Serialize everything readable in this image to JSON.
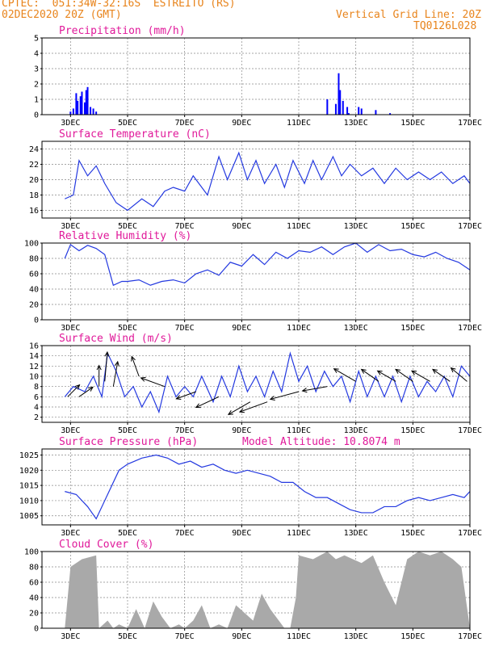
{
  "header": {
    "station": "CPTEC:  051:34W-32:16S  ESTREITO (RS)",
    "run": "02DEC2020 20Z (GMT)",
    "grid_note": "Vertical Grid Line: 20Z",
    "model_code": "TQ0126L028"
  },
  "colors": {
    "header": "#e8841c",
    "title": "#e0199a",
    "line": "#2439e0",
    "bars": "#0000ff",
    "cloud": "#a9a9a9"
  },
  "x_labels": [
    "3DEC",
    "5DEC",
    "7DEC",
    "9DEC",
    "11DEC",
    "13DEC",
    "15DEC",
    "17DEC"
  ],
  "chart_data": [
    {
      "id": "precip",
      "type": "bar",
      "title": "Precipitation (mm/h)",
      "ylim": [
        0,
        5
      ],
      "yticks": [
        "0",
        "1",
        "2",
        "3",
        "4",
        "5"
      ],
      "grid": true,
      "x_range_days": [
        2.8,
        17.0
      ],
      "series": [
        {
          "x": [
            3.0,
            3.1,
            3.2,
            3.25,
            3.35,
            3.4,
            3.5,
            3.55,
            3.6,
            3.7,
            3.8,
            3.9,
            12.0,
            12.3,
            12.4,
            12.45,
            12.55,
            12.7,
            12.75,
            13.1,
            13.2,
            13.7,
            14.2
          ],
          "values": [
            0.2,
            0.4,
            1.4,
            0.9,
            1.2,
            1.5,
            0.8,
            1.6,
            1.8,
            0.5,
            0.4,
            0.2,
            1.0,
            0.7,
            2.7,
            1.6,
            0.9,
            0.5,
            0.1,
            0.5,
            0.4,
            0.3,
            0.1
          ]
        }
      ]
    },
    {
      "id": "temp",
      "type": "line",
      "title": "Surface Temperature (nC)",
      "ylim": [
        15,
        25
      ],
      "yticks": [
        "16",
        "18",
        "20",
        "22",
        "24"
      ],
      "grid": true,
      "series": [
        {
          "x": [
            2.8,
            3.1,
            3.3,
            3.6,
            3.9,
            4.2,
            4.6,
            5.0,
            5.5,
            5.9,
            6.3,
            6.6,
            7.0,
            7.3,
            7.8,
            8.2,
            8.5,
            8.9,
            9.2,
            9.5,
            9.8,
            10.2,
            10.5,
            10.8,
            11.2,
            11.5,
            11.8,
            12.2,
            12.5,
            12.8,
            13.2,
            13.6,
            14.0,
            14.4,
            14.8,
            15.2,
            15.6,
            16.0,
            16.4,
            16.8,
            17.0
          ],
          "values": [
            17.5,
            18.0,
            22.5,
            20.5,
            21.8,
            19.5,
            17.0,
            16.0,
            17.5,
            16.5,
            18.5,
            19.0,
            18.5,
            20.5,
            18.0,
            23.0,
            20.0,
            23.5,
            20.0,
            22.5,
            19.5,
            22.0,
            19.0,
            22.5,
            19.5,
            22.5,
            20.0,
            23.0,
            20.5,
            22.0,
            20.5,
            21.5,
            19.5,
            21.5,
            20.0,
            21.0,
            20.0,
            21.0,
            19.5,
            20.5,
            19.5
          ]
        }
      ]
    },
    {
      "id": "rh",
      "type": "line",
      "title": "Relative Humidity (%)",
      "ylim": [
        0,
        100
      ],
      "yticks": [
        "0",
        "20",
        "40",
        "60",
        "80",
        "100"
      ],
      "grid": true,
      "series": [
        {
          "x": [
            2.8,
            3.0,
            3.3,
            3.6,
            3.9,
            4.2,
            4.5,
            4.8,
            5.0,
            5.4,
            5.8,
            6.2,
            6.6,
            7.0,
            7.4,
            7.8,
            8.2,
            8.6,
            9.0,
            9.4,
            9.8,
            10.2,
            10.6,
            11.0,
            11.4,
            11.8,
            12.2,
            12.6,
            13.0,
            13.4,
            13.8,
            14.2,
            14.6,
            15.0,
            15.4,
            15.8,
            16.2,
            16.6,
            17.0
          ],
          "values": [
            80,
            98,
            90,
            97,
            93,
            85,
            45,
            50,
            50,
            52,
            45,
            50,
            52,
            48,
            60,
            65,
            58,
            75,
            70,
            85,
            72,
            88,
            80,
            90,
            88,
            95,
            85,
            95,
            100,
            88,
            98,
            90,
            92,
            85,
            82,
            88,
            80,
            75,
            65
          ]
        }
      ]
    },
    {
      "id": "wind",
      "type": "line",
      "title": "Surface Wind (m/s)",
      "ylim": [
        1,
        16
      ],
      "yticks": [
        "2",
        "4",
        "6",
        "8",
        "10",
        "12",
        "14",
        "16"
      ],
      "grid": true,
      "series": [
        {
          "x": [
            2.8,
            3.1,
            3.5,
            3.8,
            4.1,
            4.3,
            4.6,
            4.9,
            5.2,
            5.5,
            5.8,
            6.1,
            6.4,
            6.7,
            7.0,
            7.3,
            7.6,
            8.0,
            8.3,
            8.6,
            8.9,
            9.2,
            9.5,
            9.8,
            10.1,
            10.4,
            10.7,
            11.0,
            11.3,
            11.6,
            11.9,
            12.2,
            12.5,
            12.8,
            13.1,
            13.4,
            13.7,
            14.0,
            14.3,
            14.6,
            14.9,
            15.2,
            15.5,
            15.8,
            16.1,
            16.4,
            16.7,
            17.0
          ],
          "values": [
            6,
            8,
            7,
            10,
            6,
            14.5,
            11,
            6,
            8,
            4,
            7,
            3,
            10,
            6,
            8,
            6,
            10,
            5,
            10,
            6,
            12,
            7,
            10,
            6,
            11,
            7,
            14.5,
            9,
            12,
            7,
            11,
            8,
            10,
            5,
            11,
            6,
            10,
            6,
            10,
            5,
            10,
            6,
            9,
            7,
            10,
            6,
            12,
            10
          ]
        }
      ],
      "vectors": [
        {
          "day": 2.9,
          "value": 6,
          "dir_deg": 45,
          "len": 8
        },
        {
          "day": 3.3,
          "value": 6,
          "dir_deg": 35,
          "len": 8
        },
        {
          "day": 4.0,
          "value": 8,
          "dir_deg": 90,
          "len": 10
        },
        {
          "day": 4.2,
          "value": 9,
          "dir_deg": 85,
          "len": 14
        },
        {
          "day": 4.5,
          "value": 8,
          "dir_deg": 80,
          "len": 12
        },
        {
          "day": 5.4,
          "value": 10,
          "dir_deg": 110,
          "len": 10
        },
        {
          "day": 6.3,
          "value": 8,
          "dir_deg": 160,
          "len": 12
        },
        {
          "day": 7.4,
          "value": 7,
          "dir_deg": 200,
          "len": 10
        },
        {
          "day": 8.2,
          "value": 6,
          "dir_deg": 205,
          "len": 12
        },
        {
          "day": 9.3,
          "value": 5,
          "dir_deg": 210,
          "len": 12
        },
        {
          "day": 9.9,
          "value": 5,
          "dir_deg": 200,
          "len": 14
        },
        {
          "day": 11.0,
          "value": 7,
          "dir_deg": 195,
          "len": 14
        },
        {
          "day": 12.0,
          "value": 8,
          "dir_deg": 190,
          "len": 12
        },
        {
          "day": 13.0,
          "value": 9,
          "dir_deg": 150,
          "len": 12
        },
        {
          "day": 13.8,
          "value": 9,
          "dir_deg": 145,
          "len": 10
        },
        {
          "day": 14.4,
          "value": 9,
          "dir_deg": 150,
          "len": 10
        },
        {
          "day": 15.0,
          "value": 9,
          "dir_deg": 145,
          "len": 10
        },
        {
          "day": 15.6,
          "value": 9,
          "dir_deg": 150,
          "len": 10
        },
        {
          "day": 16.3,
          "value": 9,
          "dir_deg": 145,
          "len": 10
        },
        {
          "day": 16.9,
          "value": 9,
          "dir_deg": 140,
          "len": 10
        }
      ]
    },
    {
      "id": "pressure",
      "type": "line",
      "title": "Surface Pressure (hPa)",
      "extra_label": "Model Altitude: 10.8074 m",
      "ylim": [
        1002,
        1027
      ],
      "yticks": [
        "1005",
        "1010",
        "1015",
        "1020",
        "1025"
      ],
      "grid": true,
      "series": [
        {
          "x": [
            2.8,
            3.2,
            3.6,
            3.9,
            4.3,
            4.7,
            5.0,
            5.5,
            6.0,
            6.4,
            6.8,
            7.2,
            7.6,
            8.0,
            8.4,
            8.8,
            9.2,
            9.6,
            10.0,
            10.4,
            10.8,
            11.2,
            11.6,
            12.0,
            12.4,
            12.8,
            13.2,
            13.6,
            14.0,
            14.4,
            14.8,
            15.2,
            15.6,
            16.0,
            16.4,
            16.8,
            17.0
          ],
          "values": [
            1013,
            1012,
            1008,
            1004,
            1012,
            1020,
            1022,
            1024,
            1025,
            1024,
            1022,
            1023,
            1021,
            1022,
            1020,
            1019,
            1020,
            1019,
            1018,
            1016,
            1016,
            1013,
            1011,
            1011,
            1009,
            1007,
            1006,
            1006,
            1008,
            1008,
            1010,
            1011,
            1010,
            1011,
            1012,
            1011,
            1013
          ]
        }
      ]
    },
    {
      "id": "cloud",
      "type": "area",
      "title": "Cloud Cover (%)",
      "ylim": [
        0,
        100
      ],
      "yticks": [
        "0",
        "20",
        "40",
        "60",
        "80",
        "100"
      ],
      "grid": true,
      "series": [
        {
          "x": [
            2.8,
            3.0,
            3.4,
            3.9,
            4.0,
            4.3,
            4.5,
            4.7,
            5.0,
            5.3,
            5.6,
            5.9,
            6.2,
            6.5,
            6.8,
            7.0,
            7.3,
            7.6,
            7.9,
            8.2,
            8.5,
            8.8,
            9.1,
            9.4,
            9.7,
            10.0,
            10.3,
            10.5,
            10.7,
            10.9,
            11.0,
            11.5,
            12.0,
            12.3,
            12.6,
            12.9,
            13.2,
            13.6,
            14.0,
            14.4,
            14.8,
            15.2,
            15.6,
            16.0,
            16.4,
            16.7,
            17.0
          ],
          "values": [
            0,
            80,
            90,
            95,
            0,
            10,
            0,
            5,
            0,
            25,
            0,
            35,
            15,
            0,
            5,
            0,
            10,
            30,
            0,
            5,
            0,
            30,
            20,
            10,
            45,
            25,
            10,
            0,
            0,
            40,
            95,
            90,
            100,
            90,
            95,
            90,
            85,
            95,
            60,
            30,
            90,
            100,
            95,
            100,
            90,
            80,
            0
          ]
        }
      ]
    }
  ]
}
